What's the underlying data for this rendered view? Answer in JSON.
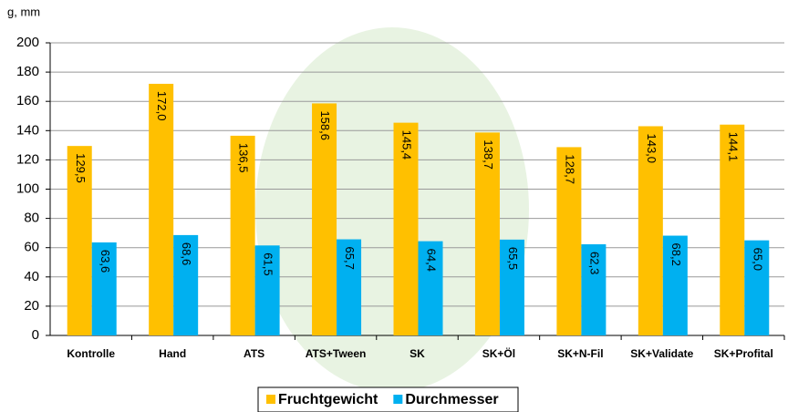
{
  "chart_data": {
    "type": "bar",
    "y_label": "g, mm",
    "categories": [
      "Kontrolle",
      "Hand",
      "ATS",
      "ATS+Tween",
      "SK",
      "SK+Öl",
      "SK+N-Fil",
      "SK+Validate",
      "SK+Profital"
    ],
    "series": [
      {
        "name": "Fruchtgewicht",
        "color": "#ffc000",
        "values": [
          129.5,
          172.0,
          136.5,
          158.6,
          145.4,
          138.7,
          128.7,
          143.0,
          144.1
        ],
        "value_labels": [
          "129,5",
          "172,0",
          "136,5",
          "158,6",
          "145,4",
          "138,7",
          "128,7",
          "143,0",
          "144,1"
        ]
      },
      {
        "name": "Durchmesser",
        "color": "#00b0f0",
        "values": [
          63.6,
          68.6,
          61.5,
          65.7,
          64.4,
          65.5,
          62.3,
          68.2,
          65.0
        ],
        "value_labels": [
          "63,6",
          "68,6",
          "61,5",
          "65,7",
          "64,4",
          "65,5",
          "62,3",
          "68,2",
          "65,0"
        ]
      }
    ],
    "ylim": [
      0,
      200
    ],
    "yticks": [
      0,
      20,
      40,
      60,
      80,
      100,
      120,
      140,
      160,
      180,
      200
    ],
    "grid": true
  }
}
